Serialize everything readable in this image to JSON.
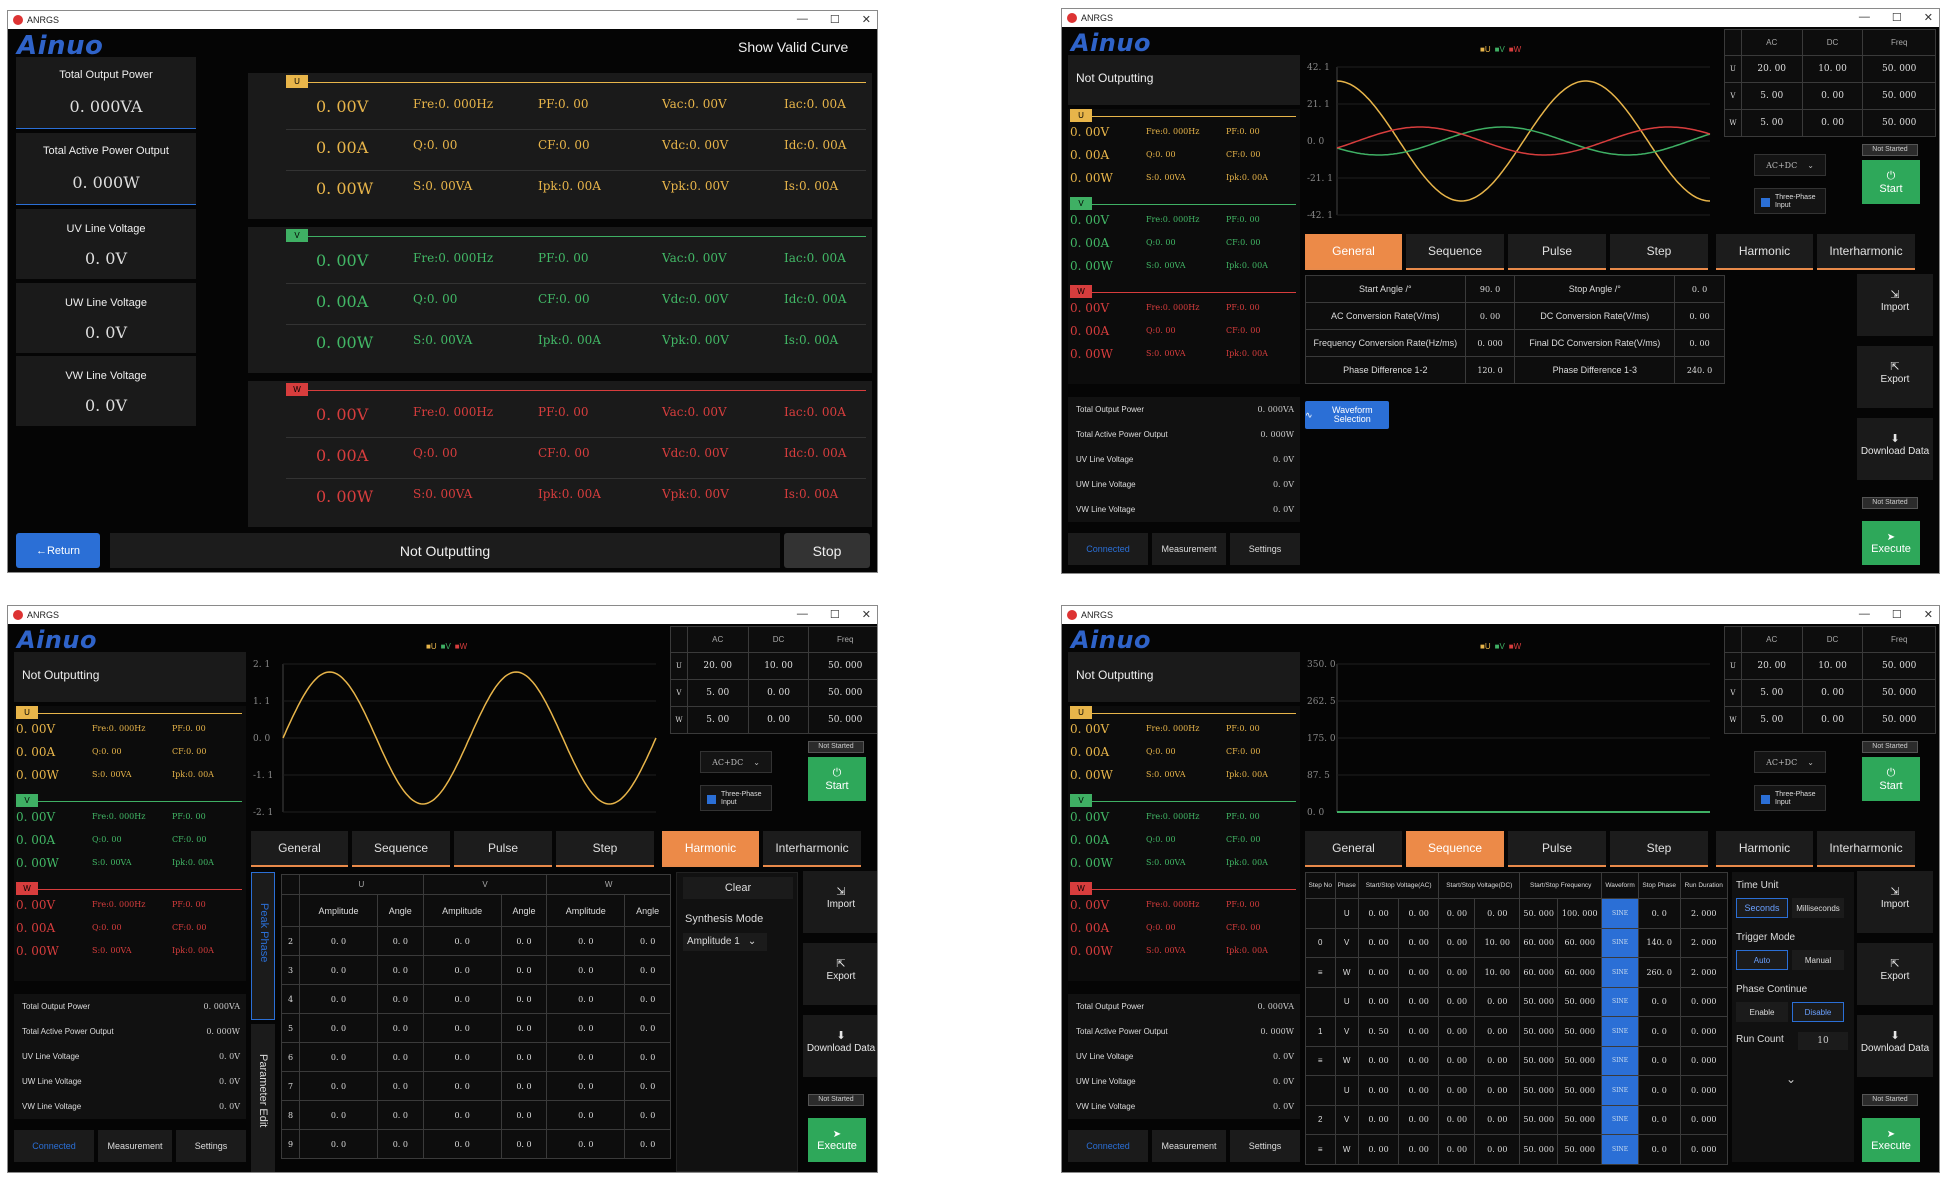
{
  "app_title": "ANRGS",
  "logo": "Ainuo",
  "win1": {
    "show_valid": "Show Valid Curve",
    "cards": [
      {
        "label": "Total Output Power",
        "value": "0. 000VA"
      },
      {
        "label": "Total Active Power Output",
        "value": "0. 000W"
      },
      {
        "label": "UV Line Voltage",
        "value": "0. 0V"
      },
      {
        "label": "UW Line Voltage",
        "value": "0. 0V"
      },
      {
        "label": "VW Line Voltage",
        "value": "0. 0V"
      }
    ],
    "phases": [
      {
        "tag": "U",
        "rows": [
          [
            "0. 00V",
            "Fre:0. 000Hz",
            "PF:0. 00",
            "Vac:0. 00V",
            "Iac:0. 00A"
          ],
          [
            "0. 00A",
            "Q:0. 00",
            "CF:0. 00",
            "Vdc:0. 00V",
            "Idc:0. 00A"
          ],
          [
            "0. 00W",
            "S:0. 00VA",
            "Ipk:0. 00A",
            "Vpk:0. 00V",
            "Is:0. 00A"
          ]
        ]
      },
      {
        "tag": "V",
        "rows": [
          [
            "0. 00V",
            "Fre:0. 000Hz",
            "PF:0. 00",
            "Vac:0. 00V",
            "Iac:0. 00A"
          ],
          [
            "0. 00A",
            "Q:0. 00",
            "CF:0. 00",
            "Vdc:0. 00V",
            "Idc:0. 00A"
          ],
          [
            "0. 00W",
            "S:0. 00VA",
            "Ipk:0. 00A",
            "Vpk:0. 00V",
            "Is:0. 00A"
          ]
        ]
      },
      {
        "tag": "W",
        "rows": [
          [
            "0. 00V",
            "Fre:0. 000Hz",
            "PF:0. 00",
            "Vac:0. 00V",
            "Iac:0. 00A"
          ],
          [
            "0. 00A",
            "Q:0. 00",
            "CF:0. 00",
            "Vdc:0. 00V",
            "Idc:0. 00A"
          ],
          [
            "0. 00W",
            "S:0. 00VA",
            "Ipk:0. 00A",
            "Vpk:0. 00V",
            "Is:0. 00A"
          ]
        ]
      }
    ],
    "return": "←Return",
    "status": "Not Outputting",
    "stop": "Stop"
  },
  "common": {
    "not_outputting": "Not Outputting",
    "mini_phases": [
      {
        "tag": "U",
        "rows": [
          [
            "0. 00V",
            "Fre:0. 000Hz",
            "PF:0. 00"
          ],
          [
            "0. 00A",
            "Q:0. 00",
            "CF:0. 00"
          ],
          [
            "0. 00W",
            "S:0. 00VA",
            "Ipk:0. 00A"
          ]
        ]
      },
      {
        "tag": "V",
        "rows": [
          [
            "0. 00V",
            "Fre:0. 000Hz",
            "PF:0. 00"
          ],
          [
            "0. 00A",
            "Q:0. 00",
            "CF:0. 00"
          ],
          [
            "0. 00W",
            "S:0. 00VA",
            "Ipk:0. 00A"
          ]
        ]
      },
      {
        "tag": "W",
        "rows": [
          [
            "0. 00V",
            "Fre:0. 000Hz",
            "PF:0. 00"
          ],
          [
            "0. 00A",
            "Q:0. 00",
            "CF:0. 00"
          ],
          [
            "0. 00W",
            "S:0. 00VA",
            "Ipk:0. 00A"
          ]
        ]
      }
    ],
    "totals": [
      [
        "Total Output Power",
        "0. 000VA"
      ],
      [
        "Total Active Power Output",
        "0. 000W"
      ],
      [
        "UV Line Voltage",
        "0. 0V"
      ],
      [
        "UW Line Voltage",
        "0. 0V"
      ],
      [
        "VW Line Voltage",
        "0. 0V"
      ]
    ],
    "nav": [
      "Connected",
      "Measurement",
      "Settings"
    ],
    "legend": "■U ■V ■W",
    "setpoint_headers": [
      "",
      "AC",
      "DC",
      "Freq"
    ],
    "setpoints": [
      [
        "U",
        "20. 00",
        "10. 00",
        "50. 000"
      ],
      [
        "V",
        "5. 00",
        "0. 00",
        "50. 000"
      ],
      [
        "W",
        "5. 00",
        "0. 00",
        "50. 000"
      ]
    ],
    "mode": "AC+DC",
    "three_phase": "Three-Phase Input",
    "not_started": "Not Started",
    "start": "Start",
    "tabs": [
      "General",
      "Sequence",
      "Pulse",
      "Step",
      "Harmonic",
      "Interharmonic"
    ],
    "side": [
      "Import",
      "Export",
      "Download Data"
    ],
    "execute": "Execute"
  },
  "win2": {
    "yticks": [
      "42. 1",
      "21. 1",
      "0. 0",
      "-21. 1",
      "-42. 1"
    ],
    "params": [
      [
        "Start Angle /°",
        "90. 0",
        "Stop Angle /°",
        "0. 0"
      ],
      [
        "AC Conversion Rate(V/ms)",
        "0. 00",
        "DC Conversion Rate(V/ms)",
        "0. 00"
      ],
      [
        "Frequency Conversion Rate(Hz/ms)",
        "0. 000",
        "Final DC Conversion Rate(V/ms)",
        "0. 00"
      ],
      [
        "Phase Difference 1-2",
        "120. 0",
        "Phase Difference 1-3",
        "240. 0"
      ]
    ],
    "waveform_btn": "Waveform Selection"
  },
  "win3": {
    "yticks": [
      "2. 1",
      "1. 1",
      "0. 0",
      "-1. 1",
      "-2. 1"
    ],
    "peak_phase": "Peak Phase",
    "param_edit": "Parameter Edit",
    "groups": [
      "U",
      "V",
      "W"
    ],
    "cols": [
      "Amplitude",
      "Angle",
      "Amplitude",
      "Angle",
      "Amplitude",
      "Angle"
    ],
    "rows": [
      [
        "2",
        "0. 0",
        "0. 0",
        "0. 0",
        "0. 0",
        "0. 0",
        "0. 0"
      ],
      [
        "3",
        "0. 0",
        "0. 0",
        "0. 0",
        "0. 0",
        "0. 0",
        "0. 0"
      ],
      [
        "4",
        "0. 0",
        "0. 0",
        "0. 0",
        "0. 0",
        "0. 0",
        "0. 0"
      ],
      [
        "5",
        "0. 0",
        "0. 0",
        "0. 0",
        "0. 0",
        "0. 0",
        "0. 0"
      ],
      [
        "6",
        "0. 0",
        "0. 0",
        "0. 0",
        "0. 0",
        "0. 0",
        "0. 0"
      ],
      [
        "7",
        "0. 0",
        "0. 0",
        "0. 0",
        "0. 0",
        "0. 0",
        "0. 0"
      ],
      [
        "8",
        "0. 0",
        "0. 0",
        "0. 0",
        "0. 0",
        "0. 0",
        "0. 0"
      ],
      [
        "9",
        "0. 0",
        "0. 0",
        "0. 0",
        "0. 0",
        "0. 0",
        "0. 0"
      ]
    ],
    "clear": "Clear",
    "synth_mode": "Synthesis Mode",
    "synth_value": "Amplitude 1"
  },
  "win4": {
    "yticks": [
      "350. 0",
      "262. 5",
      "175. 0",
      "87. 5",
      "0. 0"
    ],
    "headers": [
      "Step No",
      "Phase",
      "Start/Stop Voltage(AC)",
      "Start/Stop Voltage(DC)",
      "Start/Stop Frequency",
      "Waveform",
      "Stop Phase",
      "Run Duration"
    ],
    "rows": [
      [
        "",
        "U",
        "0. 00",
        "0. 00",
        "0. 00",
        "0. 00",
        "50. 000",
        "100. 000",
        "SINE",
        "0. 0",
        "2. 000"
      ],
      [
        "0",
        "V",
        "0. 00",
        "0. 00",
        "0. 00",
        "10. 00",
        "60. 000",
        "60. 000",
        "SINE",
        "140. 0",
        "2. 000"
      ],
      [
        "≡",
        "W",
        "0. 00",
        "0. 00",
        "0. 00",
        "10. 00",
        "60. 000",
        "60. 000",
        "SINE",
        "260. 0",
        "2. 000"
      ],
      [
        "",
        "U",
        "0. 00",
        "0. 00",
        "0. 00",
        "0. 00",
        "50. 000",
        "50. 000",
        "SINE",
        "0. 0",
        "0. 000"
      ],
      [
        "1",
        "V",
        "0. 50",
        "0. 00",
        "0. 00",
        "0. 00",
        "50. 000",
        "50. 000",
        "SINE",
        "0. 0",
        "0. 000"
      ],
      [
        "≡",
        "W",
        "0. 00",
        "0. 00",
        "0. 00",
        "0. 00",
        "50. 000",
        "50. 000",
        "SINE",
        "0. 0",
        "0. 000"
      ],
      [
        "",
        "U",
        "0. 00",
        "0. 00",
        "0. 00",
        "0. 00",
        "50. 000",
        "50. 000",
        "SINE",
        "0. 0",
        "0. 000"
      ],
      [
        "2",
        "V",
        "0. 00",
        "0. 00",
        "0. 00",
        "0. 00",
        "50. 000",
        "50. 000",
        "SINE",
        "0. 0",
        "0. 000"
      ],
      [
        "≡",
        "W",
        "0. 00",
        "0. 00",
        "0. 00",
        "0. 00",
        "50. 000",
        "50. 000",
        "SINE",
        "0. 0",
        "0. 000"
      ]
    ],
    "time_unit": "Time Unit",
    "seconds": "Seconds",
    "milliseconds": "Milliseconds",
    "trigger": "Trigger Mode",
    "auto": "Auto",
    "manual": "Manual",
    "phase_cont": "Phase Continue",
    "enable": "Enable",
    "disable": "Disable",
    "run_count": "Run Count",
    "run_count_val": "10"
  },
  "colors": {
    "u": "#e8b54a",
    "v": "#3fb064",
    "w": "#d73d3d",
    "accent": "#ec8a48",
    "brand": "#2f63c9",
    "blue": "#2b6fd6"
  }
}
